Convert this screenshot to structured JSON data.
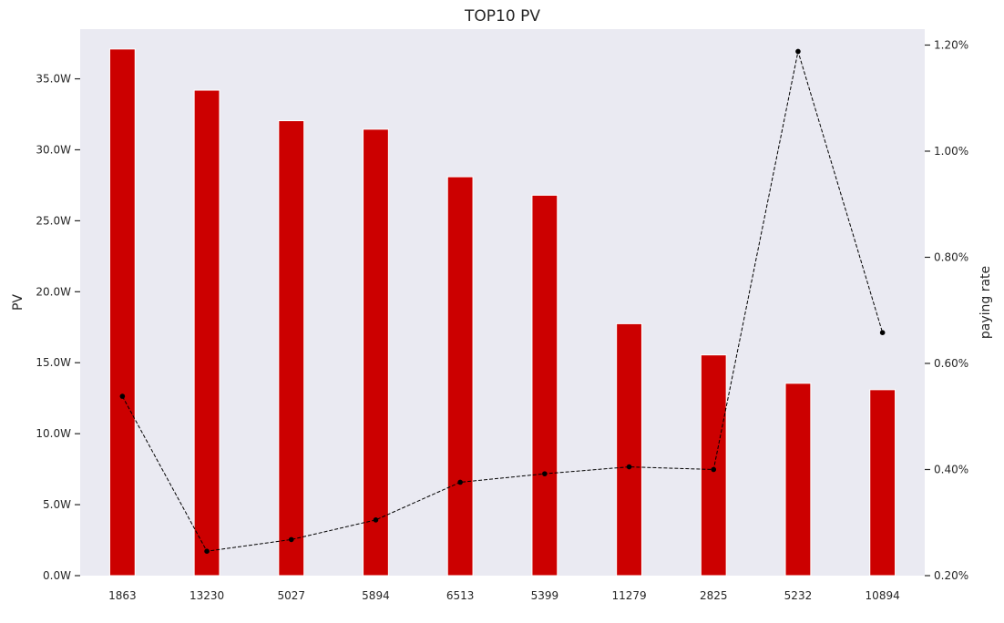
{
  "chart_data": {
    "type": "bar",
    "title": "TOP10 PV",
    "xlabel": "",
    "ylabel": "PV",
    "y2label": "paying rate",
    "categories": [
      "1863",
      "13230",
      "5027",
      "5894",
      "6513",
      "5399",
      "11279",
      "2825",
      "5232",
      "10894"
    ],
    "series": [
      {
        "axis": "left",
        "kind": "bar",
        "color": "#cc0000",
        "values": [
          371000,
          342000,
          320500,
          314500,
          281000,
          268000,
          177500,
          155500,
          135500,
          131000
        ]
      },
      {
        "axis": "right",
        "kind": "line",
        "color": "#000000",
        "line_style": "dashed",
        "marker": "circle",
        "values": [
          0.538,
          0.246,
          0.268,
          0.305,
          0.376,
          0.392,
          0.405,
          0.4,
          1.188,
          0.658
        ]
      }
    ],
    "ylim": [
      0,
      385000
    ],
    "y2lim": [
      0.2,
      1.23
    ],
    "yticks": [
      0,
      50000,
      100000,
      150000,
      200000,
      250000,
      300000,
      350000
    ],
    "ytick_labels": [
      "0.0W",
      "5.0W",
      "10.0W",
      "15.0W",
      "20.0W",
      "25.0W",
      "30.0W",
      "35.0W"
    ],
    "y2ticks": [
      0.2,
      0.4,
      0.6,
      0.8,
      1.0,
      1.2
    ],
    "y2tick_labels": [
      "0.20%",
      "0.40%",
      "0.60%",
      "0.80%",
      "1.00%",
      "1.20%"
    ],
    "plot_background": "#eaeaf2",
    "grid": false,
    "legend": "none"
  }
}
